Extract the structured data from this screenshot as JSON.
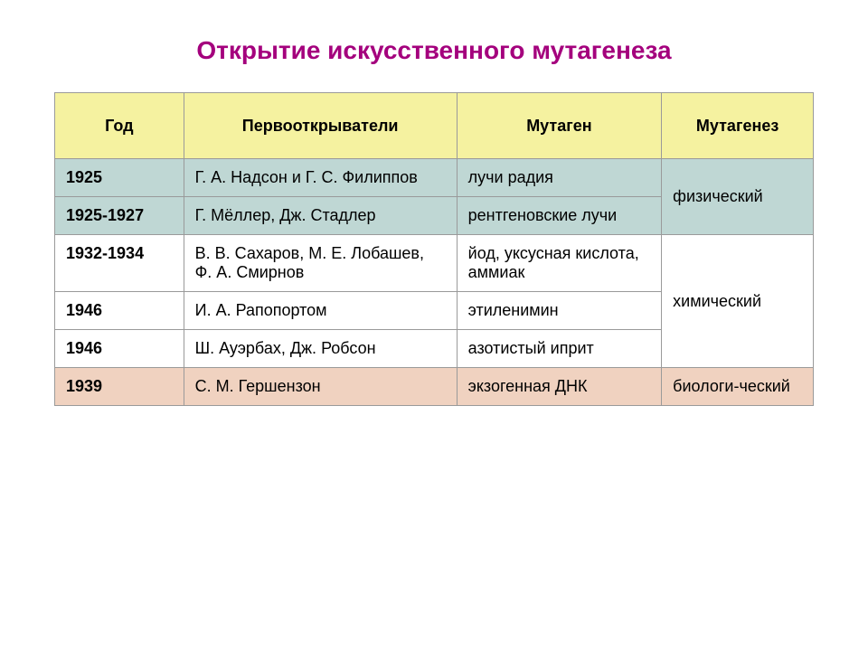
{
  "title": {
    "text": "Открытие искусственного мутагенеза",
    "color": "#a4007d"
  },
  "table": {
    "header_bg": "#f5f2a0",
    "columns": [
      "Год",
      "Первооткрыватели",
      "Мутаген",
      "Мутагенез"
    ],
    "groups": [
      {
        "bg": "#bfd7d4",
        "rows": [
          {
            "year": "1925",
            "discoverers": "Г. А. Надсон и Г. С. Филиппов",
            "mutagen": "лучи радия"
          },
          {
            "year": "1925-1927",
            "discoverers": "Г. Мёллер, Дж. Стадлер",
            "mutagen": "рентгеновские лучи"
          }
        ],
        "mutagenesis": "физический"
      },
      {
        "bg": "#ffffff",
        "rows": [
          {
            "year": "1932-1934",
            "discoverers": "В. В. Сахаров, М. Е. Лобашев, Ф. А. Смирнов",
            "mutagen": "йод, уксусная кислота, аммиак"
          },
          {
            "year": "1946",
            "discoverers": "И. А. Рапопортом",
            "mutagen": "этиленимин"
          },
          {
            "year": "1946",
            "discoverers": "Ш. Ауэрбах, Дж. Робсон",
            "mutagen": "азотистый иприт"
          }
        ],
        "mutagenesis": "химический"
      },
      {
        "bg": "#f0d2c0",
        "rows": [
          {
            "year": "1939",
            "discoverers": "С. М. Гершензон",
            "mutagen": "экзогенная ДНК"
          }
        ],
        "mutagenesis": "биологи-ческий"
      }
    ]
  }
}
